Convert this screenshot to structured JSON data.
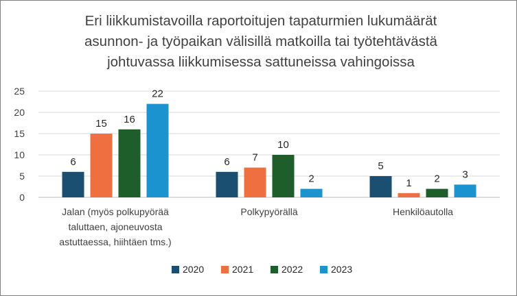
{
  "chart_data": {
    "type": "bar",
    "title_lines": [
      "Eri liikkumistavoilla raportoitujen tapaturmien lukumäärät",
      "asunnon- ja työpaikan välisillä matkoilla tai työtehtävästä",
      "johtuvassa liikkumisessa sattuneissa vahingoissa"
    ],
    "categories": [
      [
        "Jalan (myös polkupyörää",
        "taluttaen, ajoneuvosta",
        "astuttaessa, hiihtäen tms.)"
      ],
      [
        "Polkypyörällä"
      ],
      [
        "Henkilöautolla"
      ]
    ],
    "series": [
      {
        "name": "2020",
        "color": "#1b4f72",
        "values": [
          6,
          6,
          5
        ]
      },
      {
        "name": "2021",
        "color": "#ef6f40",
        "values": [
          15,
          7,
          1
        ]
      },
      {
        "name": "2022",
        "color": "#1e5e2a",
        "values": [
          16,
          10,
          2
        ]
      },
      {
        "name": "2023",
        "color": "#1a93cf",
        "values": [
          22,
          2,
          3
        ]
      }
    ],
    "yticks": [
      "0",
      "5",
      "10",
      "15",
      "20",
      "25"
    ],
    "ylim": [
      0,
      25
    ],
    "grid": true,
    "legend": "bottom",
    "xlabel": "",
    "ylabel": ""
  }
}
